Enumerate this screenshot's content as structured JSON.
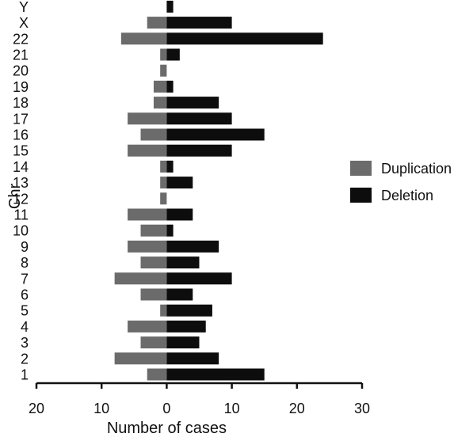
{
  "chart_data": {
    "type": "bar",
    "orientation": "horizontal",
    "title": "",
    "xlabel": "Number of cases",
    "ylabel": "Chr",
    "categories": [
      "1",
      "2",
      "3",
      "4",
      "5",
      "6",
      "7",
      "8",
      "9",
      "10",
      "11",
      "12",
      "13",
      "14",
      "15",
      "16",
      "17",
      "18",
      "19",
      "20",
      "21",
      "22",
      "X",
      "Y"
    ],
    "series": [
      {
        "name": "Duplication",
        "direction": "left",
        "color": "#6b6b6b",
        "values": [
          3,
          8,
          4,
          6,
          1,
          4,
          8,
          4,
          6,
          4,
          6,
          1,
          1,
          1,
          6,
          4,
          6,
          2,
          2,
          1,
          1,
          7,
          3,
          0
        ]
      },
      {
        "name": "Deletion",
        "direction": "right",
        "color": "#0d0d0d",
        "values": [
          15,
          8,
          5,
          6,
          7,
          4,
          10,
          5,
          8,
          1,
          4,
          0,
          4,
          1,
          10,
          15,
          10,
          8,
          1,
          0,
          2,
          24,
          10,
          1
        ]
      }
    ],
    "xlim": [
      -20,
      30
    ],
    "xticks": [
      -20,
      -10,
      0,
      10,
      20,
      30
    ],
    "xtick_labels": [
      "20",
      "10",
      "0",
      "10",
      "20",
      "30"
    ],
    "grid": false,
    "legend": {
      "placement": "right"
    }
  }
}
